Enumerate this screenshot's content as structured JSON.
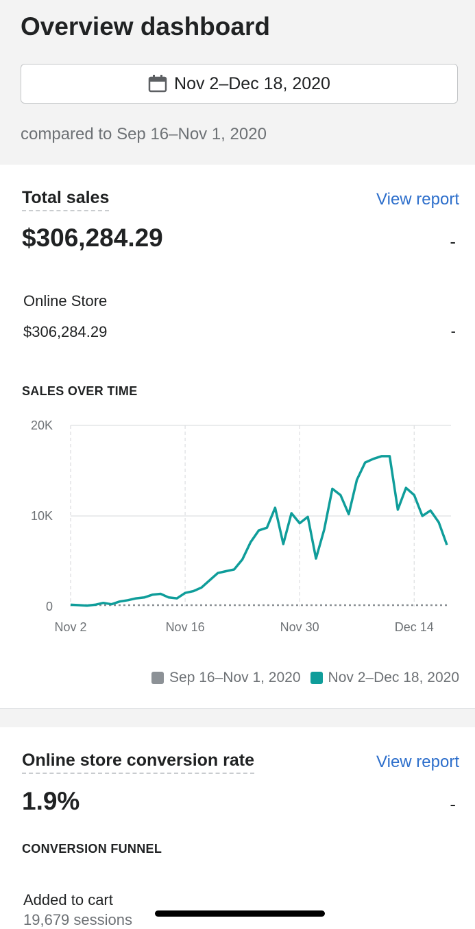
{
  "header": {
    "title": "Overview dashboard",
    "date_range": "Nov 2–Dec 18, 2020",
    "comparison": "compared to Sep 16–Nov 1, 2020"
  },
  "total_sales": {
    "title": "Total sales",
    "view_report": "View report",
    "value": "$306,284.29",
    "change": "-",
    "channel_label": "Online Store",
    "channel_value": "$306,284.29",
    "channel_change": "-",
    "chart_heading": "SALES OVER TIME"
  },
  "chart_data": {
    "type": "line",
    "x_tick_labels": [
      "Nov 2",
      "Nov 16",
      "Nov 30",
      "Dec 14"
    ],
    "y_tick_labels": [
      "0",
      "10K",
      "20K"
    ],
    "ylim": [
      0,
      20000
    ],
    "x_start": "Nov 2",
    "x_end": "Dec 18",
    "grid": true,
    "legend_position": "bottom-right",
    "series": [
      {
        "name": "Sep 16–Nov 1, 2020",
        "color": "#8c9196",
        "style": "dotted",
        "values": [
          150,
          150,
          150,
          150,
          150,
          150,
          150,
          150,
          150,
          150,
          150,
          150,
          150,
          150,
          150,
          150,
          150,
          150,
          150,
          150,
          150,
          150,
          150,
          150,
          150,
          150,
          150,
          150,
          150,
          150,
          150,
          150,
          150,
          150,
          150,
          150,
          150,
          150,
          150,
          150,
          150,
          150,
          150,
          150,
          150,
          150,
          150
        ]
      },
      {
        "name": "Nov 2–Dec 18, 2020",
        "color": "#0f9d9a",
        "style": "solid",
        "values": [
          200,
          150,
          100,
          200,
          400,
          250,
          550,
          700,
          900,
          1000,
          1300,
          1400,
          1000,
          900,
          1500,
          1700,
          2100,
          2900,
          3700,
          3900,
          4100,
          5200,
          7100,
          8400,
          8700,
          10900,
          6900,
          10300,
          9200,
          9900,
          5300,
          8500,
          13000,
          12300,
          10200,
          14000,
          15900,
          16300,
          16600,
          16600,
          10700,
          13100,
          12300,
          10000,
          10600,
          9300,
          6800
        ]
      }
    ]
  },
  "conversion": {
    "title": "Online store conversion rate",
    "view_report": "View report",
    "value": "1.9%",
    "change": "-",
    "funnel_heading": "CONVERSION FUNNEL",
    "added_to_cart_label": "Added to cart",
    "added_to_cart_sessions": "19,679 sessions"
  }
}
